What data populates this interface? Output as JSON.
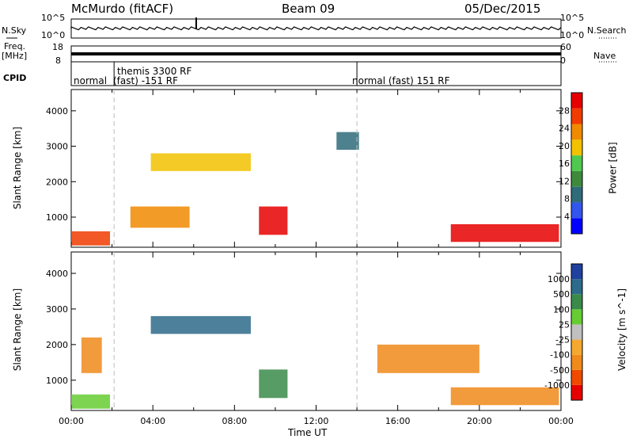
{
  "header": {
    "station": "McMurdo (fitACF)",
    "beam": "Beam 09",
    "date": "05/Dec/2015"
  },
  "top_panels": {
    "nsky_label": "N.Sky",
    "nsearch_label": "N.Search",
    "freq_label_1": "Freq.",
    "freq_label_2": "[MHz]",
    "nave_label": "Nave",
    "left_ticks_1": [
      "10^5",
      "10^0"
    ],
    "right_ticks_1": [
      "10^5",
      "10^0"
    ],
    "left_ticks_2": [
      "18",
      "8"
    ],
    "right_ticks_2": [
      "60",
      "0"
    ]
  },
  "cpid": {
    "label": "CPID",
    "segments": [
      {
        "start_hour": 0.0,
        "end_hour": 2.1,
        "label": "normal"
      },
      {
        "start_hour": 2.1,
        "end_hour": 14.0,
        "label_top": "themis 3300 RF",
        "label": "(fast) -151 RF"
      },
      {
        "start_hour": 14.0,
        "end_hour": 24.0,
        "label": "normal (fast) 151 RF"
      }
    ]
  },
  "x_axis": {
    "label": "Time UT",
    "ticks": [
      "00:00",
      "04:00",
      "08:00",
      "12:00",
      "16:00",
      "20:00",
      "00:00"
    ]
  },
  "chart_data": [
    {
      "type": "heatmap",
      "title": "",
      "xlabel": "Time UT",
      "ylabel": "Slant Range [km]",
      "ylim": [
        150,
        4600
      ],
      "yticks": [
        "1000",
        "2000",
        "3000",
        "4000"
      ],
      "colorbar_label": "Power [dB]",
      "colorbar_ticks": [
        "28",
        "24",
        "20",
        "16",
        "12",
        "8",
        "4"
      ],
      "colors": [
        "#0000ff",
        "#3355ee",
        "#2f6b7a",
        "#3d8a3d",
        "#4fc84f",
        "#f2c200",
        "#f08a00",
        "#f03c00",
        "#e60000"
      ],
      "regions": [
        {
          "t0": 0.0,
          "t1": 1.9,
          "r0": 200,
          "r1": 600,
          "level": 7
        },
        {
          "t0": 2.9,
          "t1": 5.8,
          "r0": 700,
          "r1": 1300,
          "level": 6
        },
        {
          "t0": 3.9,
          "t1": 8.8,
          "r0": 2300,
          "r1": 2800,
          "level": 5
        },
        {
          "t0": 9.2,
          "t1": 10.6,
          "r0": 500,
          "r1": 1300,
          "level": 8
        },
        {
          "t0": 13.0,
          "t1": 14.1,
          "r0": 2900,
          "r1": 3400,
          "level": 2
        },
        {
          "t0": 18.6,
          "t1": 23.9,
          "r0": 300,
          "r1": 800,
          "level": 8
        }
      ]
    },
    {
      "type": "heatmap",
      "title": "",
      "xlabel": "Time UT",
      "ylabel": "Slant Range [km]",
      "ylim": [
        150,
        4600
      ],
      "yticks": [
        "1000",
        "2000",
        "3000",
        "4000"
      ],
      "colorbar_label": "Velocity [m s^-1]",
      "colorbar_ticks": [
        "1000",
        "500",
        "100",
        "25",
        "-25",
        "-100",
        "-500",
        "-1000"
      ],
      "colors": [
        "#e60000",
        "#f04a00",
        "#f08a1a",
        "#f5a830",
        "#c0c0c0",
        "#66cc33",
        "#3a8a4a",
        "#2e6a8a",
        "#2040a0"
      ],
      "regions": [
        {
          "t0": 0.0,
          "t1": 1.9,
          "r0": 200,
          "r1": 600,
          "level": 5
        },
        {
          "t0": 0.5,
          "t1": 1.5,
          "r0": 1200,
          "r1": 2200,
          "level": 2
        },
        {
          "t0": 3.9,
          "t1": 8.8,
          "r0": 2300,
          "r1": 2800,
          "level": 7
        },
        {
          "t0": 9.2,
          "t1": 10.6,
          "r0": 500,
          "r1": 1300,
          "level": 6
        },
        {
          "t0": 15.0,
          "t1": 20.0,
          "r0": 1200,
          "r1": 2000,
          "level": 2
        },
        {
          "t0": 18.6,
          "t1": 23.9,
          "r0": 300,
          "r1": 800,
          "level": 2
        }
      ]
    }
  ]
}
